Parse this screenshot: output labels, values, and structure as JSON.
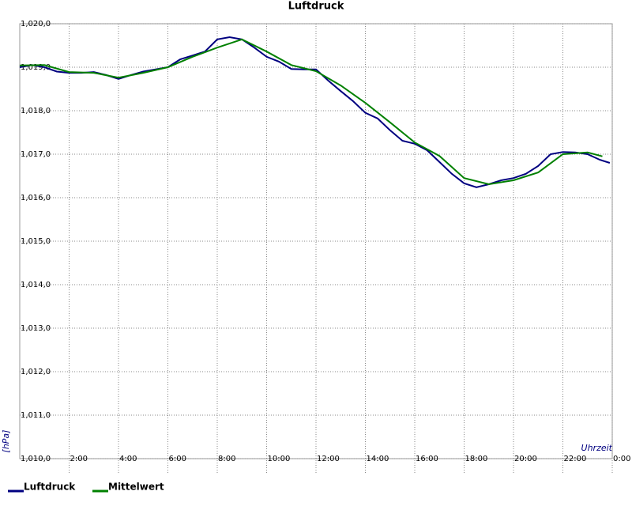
{
  "chart_data": {
    "type": "line",
    "title": "Luftdruck",
    "y_label": "[hPa]",
    "x_label": "Uhrzeit",
    "xlim": [
      0,
      24
    ],
    "xticks": [
      {
        "value": 2,
        "label": "2:00"
      },
      {
        "value": 4,
        "label": "4:00"
      },
      {
        "value": 6,
        "label": "6:00"
      },
      {
        "value": 8,
        "label": "8:00"
      },
      {
        "value": 10,
        "label": "10:00"
      },
      {
        "value": 12,
        "label": "12:00"
      },
      {
        "value": 14,
        "label": "14:00"
      },
      {
        "value": 16,
        "label": "16:00"
      },
      {
        "value": 18,
        "label": "18:00"
      },
      {
        "value": 20,
        "label": "20:00"
      },
      {
        "value": 22,
        "label": "22:00"
      },
      {
        "value": 24,
        "label": "0:00"
      }
    ],
    "ylim": [
      1010,
      1020
    ],
    "yticks": [
      {
        "value": 1010,
        "label": "1,010,0"
      },
      {
        "value": 1011,
        "label": "1,011,0"
      },
      {
        "value": 1012,
        "label": "1,012,0"
      },
      {
        "value": 1013,
        "label": "1,013,0"
      },
      {
        "value": 1014,
        "label": "1,014,0"
      },
      {
        "value": 1015,
        "label": "1,015,0"
      },
      {
        "value": 1016,
        "label": "1,016,0"
      },
      {
        "value": 1017,
        "label": "1,017,0"
      },
      {
        "value": 1018,
        "label": "1,018,0"
      },
      {
        "value": 1019,
        "label": "1,019,0"
      },
      {
        "value": 1020,
        "label": "1,020,0"
      }
    ],
    "grid": true,
    "series": [
      {
        "name": "Luftdruck",
        "color": "#000080",
        "x": [
          0,
          0.5,
          1,
          1.5,
          2,
          2.5,
          3,
          3.5,
          4,
          4.5,
          5,
          5.5,
          6,
          6.5,
          7,
          7.5,
          8,
          8.5,
          9,
          9.5,
          10,
          10.5,
          11,
          11.5,
          12,
          12.5,
          13,
          13.5,
          14,
          14.5,
          15,
          15.5,
          16,
          16.5,
          17,
          17.5,
          18,
          18.5,
          19,
          19.5,
          20,
          20.5,
          21,
          21.5,
          22,
          22.5,
          23,
          23.5,
          23.9
        ],
        "values": [
          1019.0,
          1019.05,
          1019.0,
          1018.9,
          1018.87,
          1018.87,
          1018.89,
          1018.82,
          1018.73,
          1018.82,
          1018.9,
          1018.95,
          1019.0,
          1019.18,
          1019.27,
          1019.36,
          1019.64,
          1019.69,
          1019.64,
          1019.45,
          1019.24,
          1019.13,
          1018.96,
          1018.95,
          1018.95,
          1018.69,
          1018.45,
          1018.22,
          1017.95,
          1017.82,
          1017.55,
          1017.31,
          1017.24,
          1017.09,
          1016.82,
          1016.55,
          1016.33,
          1016.24,
          1016.31,
          1016.4,
          1016.45,
          1016.55,
          1016.73,
          1017.0,
          1017.05,
          1017.04,
          1017.0,
          1016.87,
          1016.8
        ]
      },
      {
        "name": "Mittelwert",
        "color": "#008000",
        "x": [
          0,
          1,
          2,
          3,
          4,
          5,
          6,
          7,
          8,
          9,
          10,
          11,
          12,
          13,
          14,
          15,
          16,
          17,
          18,
          19,
          20,
          21,
          22,
          23,
          23.6
        ],
        "values": [
          1019.04,
          1019.05,
          1018.89,
          1018.87,
          1018.76,
          1018.87,
          1019.0,
          1019.24,
          1019.45,
          1019.64,
          1019.36,
          1019.05,
          1018.91,
          1018.58,
          1018.18,
          1017.73,
          1017.27,
          1016.96,
          1016.45,
          1016.31,
          1016.4,
          1016.58,
          1017.0,
          1017.04,
          1016.95
        ]
      }
    ]
  }
}
